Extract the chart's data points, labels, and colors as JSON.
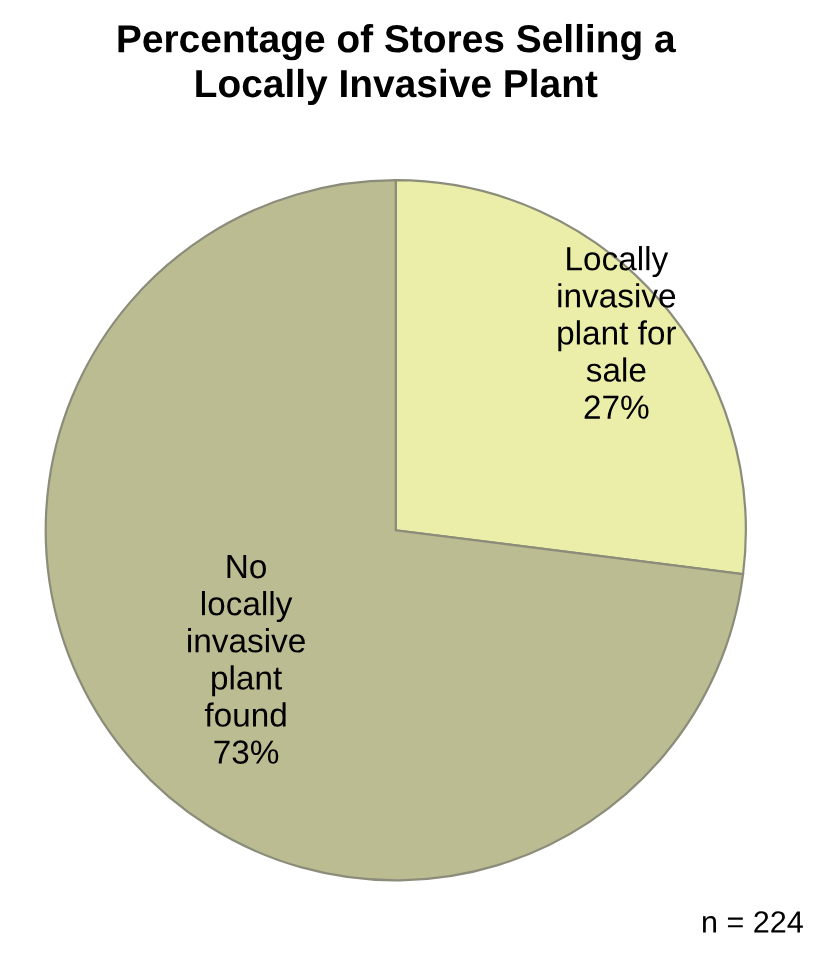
{
  "chart_data": {
    "type": "pie",
    "title": "Percentage of Stores Selling a\nLocally Invasive Plant",
    "categories": [
      "Locally\ninvasive\nplant for\nsale",
      "No\nlocally\ninvasive\nplant\nfound"
    ],
    "values": [
      27,
      73
    ],
    "value_labels": [
      "27%",
      "73%"
    ],
    "colors": [
      "#ebeea8",
      "#bcbc92"
    ],
    "annotations": [
      "n = 224"
    ]
  }
}
